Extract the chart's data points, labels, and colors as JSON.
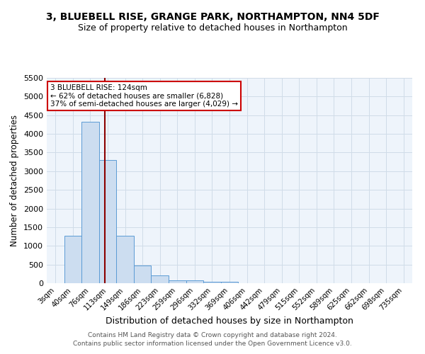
{
  "title": "3, BLUEBELL RISE, GRANGE PARK, NORTHAMPTON, NN4 5DF",
  "subtitle": "Size of property relative to detached houses in Northampton",
  "xlabel": "Distribution of detached houses by size in Northampton",
  "ylabel": "Number of detached properties",
  "footer_line1": "Contains HM Land Registry data © Crown copyright and database right 2024.",
  "footer_line2": "Contains public sector information licensed under the Open Government Licence v3.0.",
  "annotation_line1": "3 BLUEBELL RISE: 124sqm",
  "annotation_line2": "← 62% of detached houses are smaller (6,828)",
  "annotation_line3": "37% of semi-detached houses are larger (4,029) →",
  "bar_labels": [
    "3sqm",
    "40sqm",
    "76sqm",
    "113sqm",
    "149sqm",
    "186sqm",
    "223sqm",
    "259sqm",
    "296sqm",
    "332sqm",
    "369sqm",
    "406sqm",
    "442sqm",
    "479sqm",
    "515sqm",
    "552sqm",
    "589sqm",
    "625sqm",
    "662sqm",
    "698sqm",
    "735sqm"
  ],
  "bar_values": [
    0,
    1270,
    4320,
    3300,
    1280,
    475,
    205,
    85,
    75,
    45,
    35,
    0,
    0,
    0,
    0,
    0,
    0,
    0,
    0,
    0,
    0
  ],
  "bar_color": "#ccddf0",
  "bar_edge_color": "#5b9bd5",
  "vline_color": "#8b0000",
  "vline_index": 2.83,
  "ylim_max": 5500,
  "yticks": [
    0,
    500,
    1000,
    1500,
    2000,
    2500,
    3000,
    3500,
    4000,
    4500,
    5000,
    5500
  ],
  "grid_color": "#d0dce8",
  "bg_color": "#eef4fb",
  "title_fontsize": 10,
  "subtitle_fontsize": 9,
  "annotation_box_color": "#ffffff",
  "annotation_box_edge": "#cc0000",
  "footer_fontsize": 6.5,
  "ylabel_fontsize": 8.5,
  "xlabel_fontsize": 9
}
